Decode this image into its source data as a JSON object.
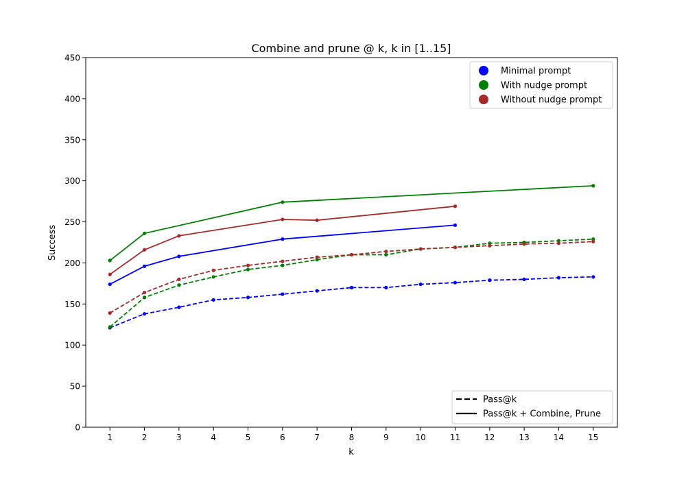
{
  "chart_data": {
    "type": "line",
    "title": "Combine and prune @ k, k in [1..15]",
    "xlabel": "k",
    "ylabel": "Success",
    "xlim": [
      0.3,
      15.7
    ],
    "ylim": [
      0,
      450
    ],
    "xticks": [
      1,
      2,
      3,
      4,
      5,
      6,
      7,
      8,
      9,
      10,
      11,
      12,
      13,
      14,
      15
    ],
    "yticks": [
      0,
      50,
      100,
      150,
      200,
      250,
      300,
      350,
      400,
      450
    ],
    "grid": false,
    "legends": {
      "colors": {
        "placement": "top-right",
        "entries": [
          {
            "label": "Minimal prompt",
            "color": "#0000ff"
          },
          {
            "label": "With nudge prompt",
            "color": "#008000"
          },
          {
            "label": "Without nudge prompt",
            "color": "#a52a2a"
          }
        ]
      },
      "styles": {
        "placement": "bottom-right",
        "entries": [
          {
            "label": "Pass@k",
            "dash": "dashed"
          },
          {
            "label": "Pass@k + Combine, Prune",
            "dash": "solid"
          }
        ]
      }
    },
    "series": [
      {
        "group": "Minimal prompt",
        "style": "dashed",
        "color": "#0000ff",
        "x": [
          1,
          2,
          3,
          4,
          5,
          6,
          7,
          8,
          9,
          10,
          11,
          12,
          13,
          14,
          15
        ],
        "y": [
          121,
          138,
          146,
          155,
          158,
          162,
          166,
          170,
          170,
          174,
          176,
          179,
          180,
          182,
          183
        ]
      },
      {
        "group": "With nudge prompt",
        "style": "dashed",
        "color": "#008000",
        "x": [
          1,
          2,
          3,
          4,
          5,
          6,
          7,
          8,
          9,
          10,
          11,
          12,
          13,
          14,
          15
        ],
        "y": [
          122,
          158,
          173,
          183,
          192,
          197,
          204,
          210,
          210,
          217,
          219,
          224,
          225,
          227,
          229
        ]
      },
      {
        "group": "Without nudge prompt",
        "style": "dashed",
        "color": "#a52a2a",
        "x": [
          1,
          2,
          3,
          4,
          5,
          6,
          7,
          8,
          9,
          10,
          11,
          12,
          13,
          14,
          15
        ],
        "y": [
          139,
          164,
          180,
          191,
          197,
          202,
          207,
          210,
          214,
          217,
          219,
          221,
          223,
          224,
          226
        ]
      },
      {
        "group": "Minimal prompt",
        "style": "solid",
        "color": "#0000ff",
        "x": [
          1,
          2,
          3,
          6,
          11
        ],
        "y": [
          174,
          196,
          208,
          229,
          246
        ]
      },
      {
        "group": "With nudge prompt",
        "style": "solid",
        "color": "#008000",
        "x": [
          1,
          2,
          6,
          15
        ],
        "y": [
          203,
          236,
          274,
          294
        ]
      },
      {
        "group": "Without nudge prompt",
        "style": "solid",
        "color": "#a52a2a",
        "x": [
          1,
          2,
          3,
          6,
          7,
          11
        ],
        "y": [
          186,
          216,
          233,
          253,
          252,
          269
        ]
      }
    ]
  }
}
